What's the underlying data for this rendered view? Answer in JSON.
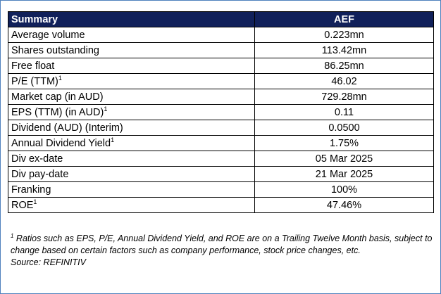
{
  "table": {
    "header": {
      "label": "Summary",
      "value": "AEF"
    },
    "rows": [
      {
        "label": "Average volume",
        "sup": "",
        "value": "0.223mn"
      },
      {
        "label": "Shares outstanding",
        "sup": "",
        "value": "113.42mn"
      },
      {
        "label": "Free float",
        "sup": "",
        "value": "86.25mn"
      },
      {
        "label": "P/E (TTM)",
        "sup": "1",
        "value": "46.02"
      },
      {
        "label": "Market cap (in AUD)",
        "sup": "",
        "value": "729.28mn"
      },
      {
        "label": "EPS (TTM) (in AUD)",
        "sup": "1",
        "value": "0.11"
      },
      {
        "label": "Dividend (AUD) (Interim)",
        "sup": "",
        "value": "0.0500"
      },
      {
        "label": "Annual Dividend Yield",
        "sup": "1",
        "value": "1.75%"
      },
      {
        "label": "Div ex-date",
        "sup": "",
        "value": "05 Mar 2025"
      },
      {
        "label": "Div pay-date",
        "sup": "",
        "value": "21 Mar 2025"
      },
      {
        "label": "Franking",
        "sup": "",
        "value": "100%"
      },
      {
        "label": "ROE",
        "sup": "1",
        "value": "47.46%"
      }
    ]
  },
  "footnote": {
    "marker": "1",
    "text": " Ratios such as EPS, P/E, Annual Dividend Yield, and ROE are on a Trailing Twelve Month basis, subject to change based on certain factors such as company performance, stock price changes, etc.",
    "source": "Source: REFINITIV"
  },
  "colors": {
    "header_bg": "#10205a",
    "frame_border": "#4f81bd"
  }
}
